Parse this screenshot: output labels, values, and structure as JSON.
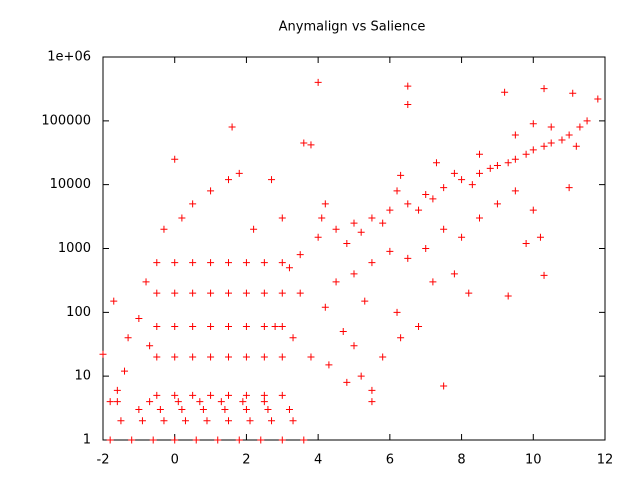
{
  "chart_data": {
    "type": "scatter",
    "title": "Anymalign vs Salience",
    "xlim": [
      -2,
      12
    ],
    "xticks": [
      -2,
      0,
      2,
      4,
      6,
      8,
      10,
      12
    ],
    "ylim": [
      1,
      1000000
    ],
    "yscale": "log",
    "yticks": [
      1,
      10,
      100,
      1000,
      10000,
      100000,
      {
        "value": 1000000,
        "label": "1e+06"
      }
    ],
    "x": [
      4,
      1.6,
      0,
      6.5,
      6.5,
      9.2,
      10.3,
      11.8,
      11.1,
      3.6,
      3.8,
      10.3,
      9.8,
      10.2,
      9.3,
      8.2,
      7.5,
      5.5,
      5.5,
      4.8,
      -2,
      -1.7,
      -1.3,
      -1.6,
      -1.8,
      -1.4,
      4,
      4.5,
      5,
      5.5,
      6,
      6.5,
      7,
      7.5,
      8,
      8.5,
      9,
      9.5,
      10,
      10.5,
      11,
      11.3,
      11.5,
      4.2,
      4.8,
      5.2,
      5.8,
      6.2,
      6.8,
      7.2,
      7.8,
      8.3,
      8.8,
      9.3,
      9.8,
      10.3,
      10.8,
      11.2,
      6.3,
      7.3,
      8.5,
      9.5,
      10,
      10.5,
      5,
      5.5,
      6,
      6.5,
      7,
      7.5,
      8,
      8.5,
      9,
      9.5,
      10,
      11,
      5.3,
      6.2,
      6.8,
      7.2,
      7.8,
      4.5,
      4.2,
      4.7,
      5,
      5.8,
      6.3,
      3.8,
      4.3,
      5.2,
      4.1,
      -0.5,
      -0.5,
      -0.5,
      -0.5,
      -0.5,
      0,
      0,
      0,
      0,
      0,
      0.5,
      0.5,
      0.5,
      0.5,
      0.5,
      1,
      1,
      1,
      1,
      1,
      1.5,
      1.5,
      1.5,
      1.5,
      1.5,
      2,
      2,
      2,
      2,
      2,
      2.5,
      2.5,
      2.5,
      2.5,
      2.5,
      3,
      3,
      3,
      3,
      3,
      0.5,
      1,
      1.5,
      1.8,
      0.2,
      2.2,
      -0.3,
      -0.8,
      -1,
      -0.7,
      3.2,
      3.5,
      3.5,
      3,
      2.8,
      3.3,
      2.7,
      -1.8,
      -1.2,
      -0.6,
      0,
      0.6,
      1.2,
      1.8,
      2.4,
      3,
      3.6,
      -1.5,
      -0.9,
      -0.3,
      0.3,
      0.9,
      1.5,
      2.1,
      2.7,
      3.3,
      -1,
      -0.4,
      0.2,
      0.8,
      1.4,
      2,
      2.6,
      3.2,
      -1.6,
      -0.7,
      0.1,
      0.7,
      1.3,
      1.9,
      2.5
    ],
    "series": [
      {
        "color": "#ff0000",
        "values": [
          400000,
          80000,
          25000,
          350000,
          180000,
          280000,
          320000,
          220000,
          270000,
          45000,
          42000,
          380,
          1200,
          1500,
          180,
          200,
          7,
          6,
          4,
          8,
          22,
          150,
          40,
          6,
          4,
          12,
          1500,
          2000,
          2500,
          3000,
          4000,
          5000,
          7000,
          9000,
          12000,
          15000,
          20000,
          25000,
          35000,
          45000,
          60000,
          80000,
          100000,
          5000,
          1200,
          1800,
          2500,
          8000,
          4000,
          6000,
          15000,
          10000,
          18000,
          22000,
          30000,
          40000,
          50000,
          40000,
          14000,
          22000,
          30000,
          60000,
          90000,
          80000,
          400,
          600,
          900,
          700,
          1000,
          2000,
          1500,
          3000,
          5000,
          8000,
          4000,
          9000,
          150,
          100,
          60,
          300,
          400,
          300,
          120,
          50,
          30,
          20,
          40,
          20,
          15,
          10,
          3000,
          5,
          20,
          60,
          200,
          600,
          5,
          20,
          60,
          200,
          600,
          5,
          20,
          60,
          200,
          600,
          5,
          20,
          60,
          200,
          600,
          5,
          20,
          60,
          200,
          600,
          5,
          20,
          60,
          200,
          600,
          5,
          20,
          60,
          200,
          600,
          5,
          20,
          60,
          200,
          600,
          5000,
          8000,
          12000,
          15000,
          3000,
          2000,
          2000,
          300,
          80,
          30,
          500,
          800,
          200,
          3000,
          60,
          40,
          12000,
          1,
          1,
          1,
          1,
          1,
          1,
          1,
          1,
          1,
          1,
          2,
          2,
          2,
          2,
          2,
          2,
          2,
          2,
          2,
          3,
          3,
          3,
          3,
          3,
          3,
          3,
          3,
          4,
          4,
          4,
          4,
          4,
          4,
          4
        ]
      }
    ]
  }
}
